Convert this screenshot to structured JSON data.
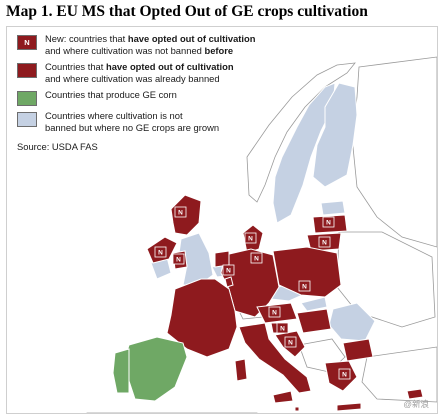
{
  "title": "Map 1. EU MS that Opted Out of GE crops cultivation",
  "legend": {
    "items": [
      {
        "swatch_label": "N",
        "line1_pre": "New: countries that ",
        "line1_bold": "have opted out of cultivation",
        "line2_pre": "and where cultivation was not banned ",
        "line2_bold": "before",
        "color": "#8e1a1e"
      },
      {
        "line1_pre": "Countries that ",
        "line1_bold": "have opted out of cultivation",
        "line2_pre": "and where cultivation was already banned",
        "color": "#8e1a1e"
      },
      {
        "line1_pre": "Countries that produce GE corn",
        "color": "#6fa865"
      },
      {
        "line1_pre": "Countries where cultivation is not",
        "line2_pre": "banned but where no GE crops are grown",
        "color": "#c5d1e3"
      }
    ],
    "source": "Source: USDA FAS"
  },
  "map": {
    "marker_label": "N",
    "colors": {
      "opted_out": "#8e1a1e",
      "ge_corn": "#6fa865",
      "no_ge": "#c5d1e3",
      "non_eu": "#ffffff",
      "outline": "#9a9a9a"
    }
  },
  "watermark": "@新浪"
}
